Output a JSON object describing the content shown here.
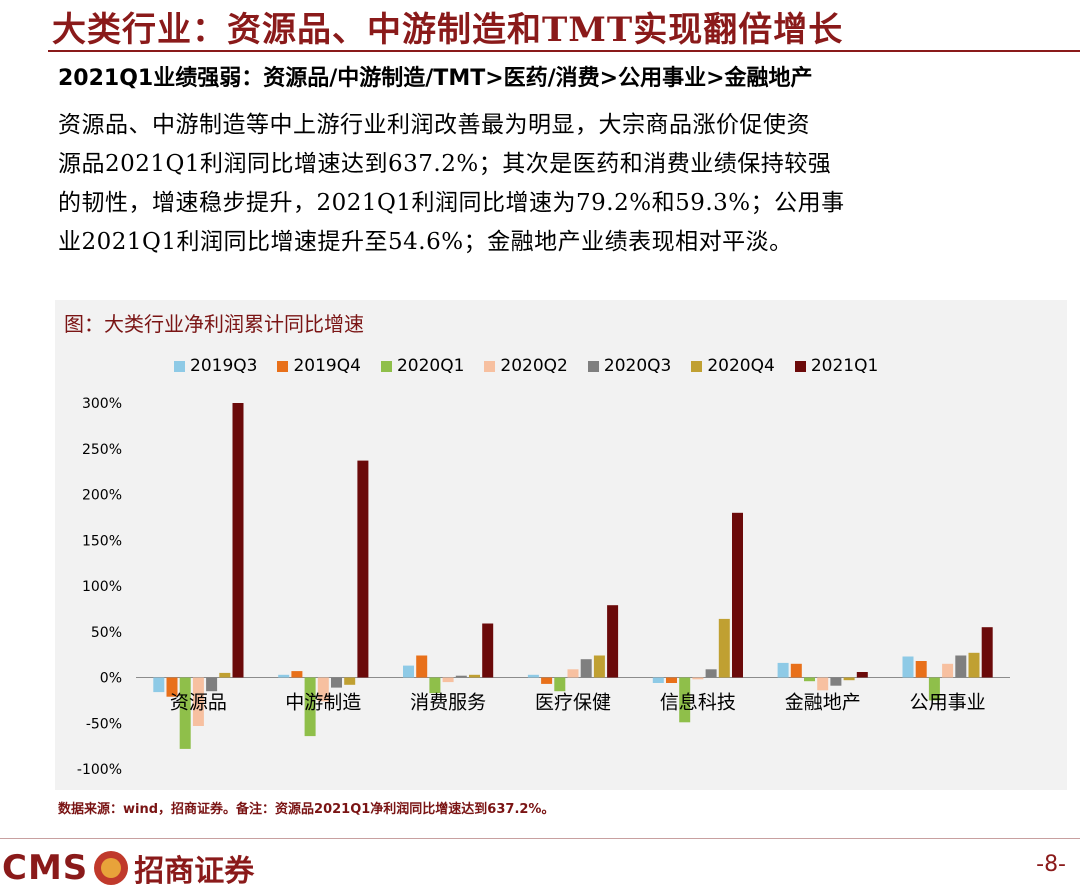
{
  "header": {
    "title": "大类行业：资源品、中游制造和TMT实现翻倍增长",
    "subtitle": "2021Q1业绩强弱：资源品/中游制造/TMT>医药/消费>公用事业>金融地产"
  },
  "body": {
    "paragraph_lines": [
      "资源品、中游制造等中上游行业利润改善最为明显，大宗商品涨价促使资",
      "源品2021Q1利润同比增速达到637.2%；其次是医药和消费业绩保持较强",
      "的韧性，增速稳步提升，2021Q1利润同比增速为79.2%和59.3%；公用事",
      "业2021Q1利润同比增速提升至54.6%；金融地产业绩表现相对平淡。"
    ]
  },
  "chart_caption": "图：大类行业净利润累计同比增速",
  "chart_data": {
    "type": "bar",
    "title": "图：大类行业净利润累计同比增速",
    "categories": [
      "资源品",
      "中游制造",
      "消费服务",
      "医疗保健",
      "信息科技",
      "金融地产",
      "公用事业"
    ],
    "series": [
      {
        "name": "2019Q3",
        "color": "#8ecae6",
        "values": [
          -16,
          3,
          13,
          3,
          -6,
          16,
          23
        ]
      },
      {
        "name": "2019Q4",
        "color": "#e8701a",
        "values": [
          -21,
          7,
          24,
          -7,
          -6,
          15,
          18
        ]
      },
      {
        "name": "2020Q1",
        "color": "#8fbf4a",
        "values": [
          -78,
          -64,
          -17,
          -15,
          -49,
          -4,
          -25
        ]
      },
      {
        "name": "2020Q2",
        "color": "#f7c0a0",
        "values": [
          -53,
          -26,
          -5,
          9,
          -2,
          -14,
          15
        ]
      },
      {
        "name": "2020Q3",
        "color": "#7f7f7f",
        "values": [
          -15,
          -11,
          2,
          20,
          9,
          -9,
          24
        ]
      },
      {
        "name": "2020Q4",
        "color": "#c0a032",
        "values": [
          5,
          -8,
          3,
          24,
          64,
          -3,
          27
        ]
      },
      {
        "name": "2021Q1",
        "color": "#6b0a0a",
        "values": [
          300,
          237,
          59,
          79,
          180,
          6,
          55
        ]
      }
    ],
    "ylim": [
      -100,
      300
    ],
    "yticks": [
      "300%",
      "250%",
      "200%",
      "150%",
      "100%",
      "50%",
      "0%",
      "-50%",
      "-100%"
    ],
    "ytick_values": [
      300,
      250,
      200,
      150,
      100,
      50,
      0,
      -50,
      -100
    ],
    "legend_position": "top"
  },
  "source_note": "数据来源：wind，招商证券。备注：资源品2021Q1净利润同比增速达到637.2%。",
  "footer": {
    "logo_text": "CMS",
    "logo_cn": "招商证券",
    "page_number": "-8-"
  }
}
